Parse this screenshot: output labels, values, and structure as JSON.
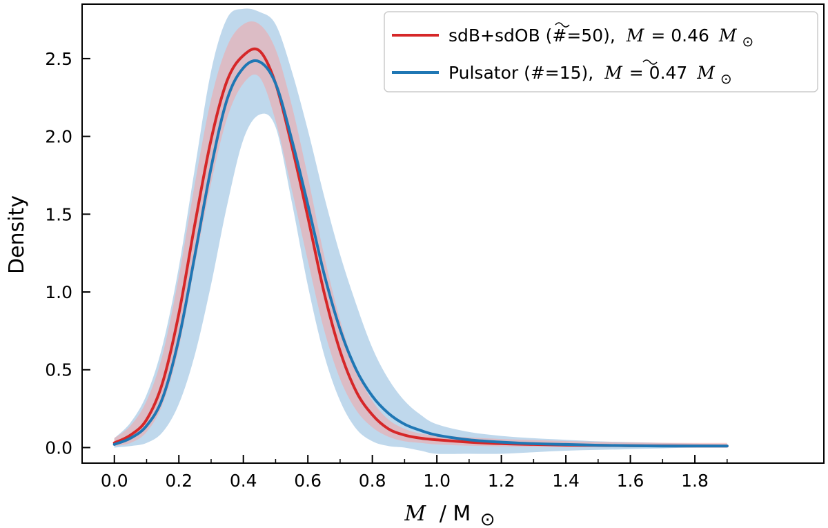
{
  "chart_data": {
    "type": "line",
    "title": "",
    "xlabel_var": "M",
    "xlabel_unit": "/ M",
    "ylabel": "Density",
    "xlim": [
      -0.1,
      2.2
    ],
    "ylim": [
      -0.1,
      2.85
    ],
    "x_ticks": [
      0.0,
      0.2,
      0.4,
      0.6,
      0.8,
      1.0,
      1.2,
      1.4,
      1.6,
      1.8
    ],
    "x_tick_labels": [
      "0.0",
      "0.2",
      "0.4",
      "0.6",
      "0.8",
      "1.0",
      "1.2",
      "1.4",
      "1.6",
      "1.8"
    ],
    "y_ticks": [
      0.0,
      0.5,
      1.0,
      1.5,
      2.0,
      2.5
    ],
    "y_tick_labels": [
      "0.0",
      "0.5",
      "1.0",
      "1.5",
      "2.0",
      "2.5"
    ],
    "legend_position": "top-right",
    "series": [
      {
        "name": "sdB+sdOB (#=50),",
        "median_label": "= 0.46",
        "color": "#d62728",
        "band_color": "#f4a6a6",
        "x": [
          0.0,
          0.05,
          0.1,
          0.15,
          0.2,
          0.25,
          0.3,
          0.35,
          0.4,
          0.45,
          0.5,
          0.55,
          0.6,
          0.65,
          0.7,
          0.75,
          0.8,
          0.85,
          0.9,
          0.95,
          1.0,
          1.1,
          1.2,
          1.3,
          1.4,
          1.5,
          1.6,
          1.7,
          1.8,
          1.9
        ],
        "y": [
          0.03,
          0.08,
          0.18,
          0.42,
          0.86,
          1.44,
          1.98,
          2.36,
          2.52,
          2.55,
          2.34,
          1.94,
          1.48,
          1.0,
          0.62,
          0.36,
          0.21,
          0.12,
          0.08,
          0.06,
          0.05,
          0.035,
          0.025,
          0.02,
          0.016,
          0.014,
          0.012,
          0.011,
          0.01,
          0.01
        ],
        "lower": [
          0.01,
          0.03,
          0.1,
          0.28,
          0.64,
          1.18,
          1.7,
          2.12,
          2.34,
          2.38,
          2.1,
          1.66,
          1.2,
          0.76,
          0.44,
          0.24,
          0.13,
          0.07,
          0.04,
          0.03,
          0.02,
          0.012,
          0.008,
          0.005,
          0.004,
          0.003,
          0.002,
          0.002,
          0.002,
          0.002
        ],
        "upper": [
          0.06,
          0.14,
          0.3,
          0.6,
          1.1,
          1.7,
          2.24,
          2.58,
          2.72,
          2.72,
          2.56,
          2.2,
          1.74,
          1.24,
          0.82,
          0.5,
          0.3,
          0.18,
          0.12,
          0.09,
          0.08,
          0.065,
          0.055,
          0.048,
          0.042,
          0.037,
          0.033,
          0.031,
          0.03,
          0.03
        ]
      },
      {
        "name": "Pulsator (#=15),",
        "median_label": "= 0.47",
        "color": "#1f77b4",
        "band_color": "#a9cbe5",
        "x": [
          0.0,
          0.05,
          0.1,
          0.15,
          0.2,
          0.25,
          0.3,
          0.35,
          0.4,
          0.45,
          0.5,
          0.55,
          0.6,
          0.65,
          0.7,
          0.75,
          0.8,
          0.85,
          0.9,
          0.95,
          1.0,
          1.1,
          1.2,
          1.3,
          1.4,
          1.5,
          1.6,
          1.7,
          1.8,
          1.9
        ],
        "y": [
          0.02,
          0.06,
          0.14,
          0.32,
          0.7,
          1.24,
          1.8,
          2.24,
          2.44,
          2.48,
          2.34,
          1.98,
          1.56,
          1.12,
          0.76,
          0.5,
          0.33,
          0.22,
          0.15,
          0.11,
          0.08,
          0.05,
          0.035,
          0.025,
          0.02,
          0.015,
          0.012,
          0.01,
          0.01,
          0.01
        ],
        "lower": [
          0.0,
          0.01,
          0.03,
          0.1,
          0.28,
          0.6,
          1.05,
          1.56,
          1.98,
          2.14,
          2.06,
          1.58,
          1.04,
          0.6,
          0.3,
          0.12,
          0.04,
          0.01,
          0.0,
          -0.02,
          -0.04,
          -0.04,
          -0.04,
          -0.03,
          -0.02,
          -0.015,
          -0.01,
          -0.005,
          0.0,
          0.0
        ],
        "upper": [
          0.06,
          0.16,
          0.34,
          0.66,
          1.16,
          1.8,
          2.42,
          2.76,
          2.82,
          2.8,
          2.72,
          2.42,
          2.04,
          1.62,
          1.24,
          0.92,
          0.64,
          0.44,
          0.3,
          0.21,
          0.15,
          0.1,
          0.075,
          0.06,
          0.05,
          0.04,
          0.035,
          0.03,
          0.025,
          0.02
        ]
      }
    ]
  }
}
